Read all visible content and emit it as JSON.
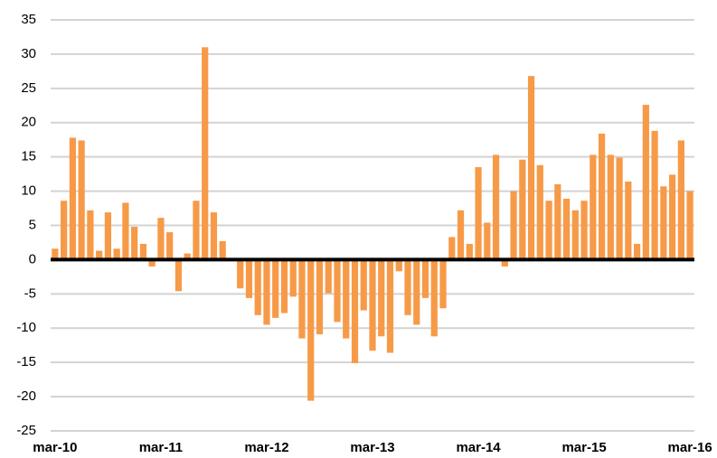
{
  "chart_data": {
    "type": "bar",
    "categories": [
      "mar-10",
      null,
      null,
      null,
      null,
      null,
      null,
      null,
      null,
      null,
      null,
      null,
      "mar-11",
      null,
      null,
      null,
      null,
      null,
      null,
      null,
      null,
      null,
      null,
      null,
      "mar-12",
      null,
      null,
      null,
      null,
      null,
      null,
      null,
      null,
      null,
      null,
      null,
      "mar-13",
      null,
      null,
      null,
      null,
      null,
      null,
      null,
      null,
      null,
      null,
      null,
      "mar-14",
      null,
      null,
      null,
      null,
      null,
      null,
      null,
      null,
      null,
      null,
      null,
      "mar-15",
      null,
      null,
      null,
      null,
      null,
      null,
      null,
      null,
      null,
      null,
      null,
      "mar-16"
    ],
    "values": [
      1.6,
      8.6,
      17.8,
      17.4,
      7.2,
      1.3,
      6.9,
      1.6,
      8.3,
      4.8,
      2.3,
      -1.0,
      6.1,
      4.0,
      -4.6,
      0.9,
      8.6,
      31.0,
      6.9,
      2.7,
      0,
      -4.2,
      -5.6,
      -8.1,
      -9.5,
      -8.5,
      -7.8,
      -5.4,
      -11.5,
      -20.6,
      -10.9,
      -4.9,
      -9.1,
      -11.5,
      -15.1,
      -7.4,
      -13.3,
      -11.2,
      -13.6,
      -1.7,
      -8.1,
      -9.5,
      -5.6,
      -11.2,
      -7.1,
      3.3,
      7.2,
      2.3,
      13.5,
      5.4,
      15.3,
      -1.0,
      10.0,
      14.6,
      26.8,
      13.8,
      8.6,
      11.0,
      8.9,
      7.2,
      8.6,
      15.3,
      18.4,
      15.3,
      14.9,
      11.4,
      2.3,
      22.6,
      18.8,
      10.7,
      12.4,
      17.4,
      10.0
    ],
    "color": "#f79a48",
    "ylim": [
      -25,
      35
    ],
    "yticks": [
      -25,
      -20,
      -15,
      -10,
      -5,
      0,
      5,
      10,
      15,
      20,
      25,
      30,
      35
    ],
    "grid": true
  }
}
